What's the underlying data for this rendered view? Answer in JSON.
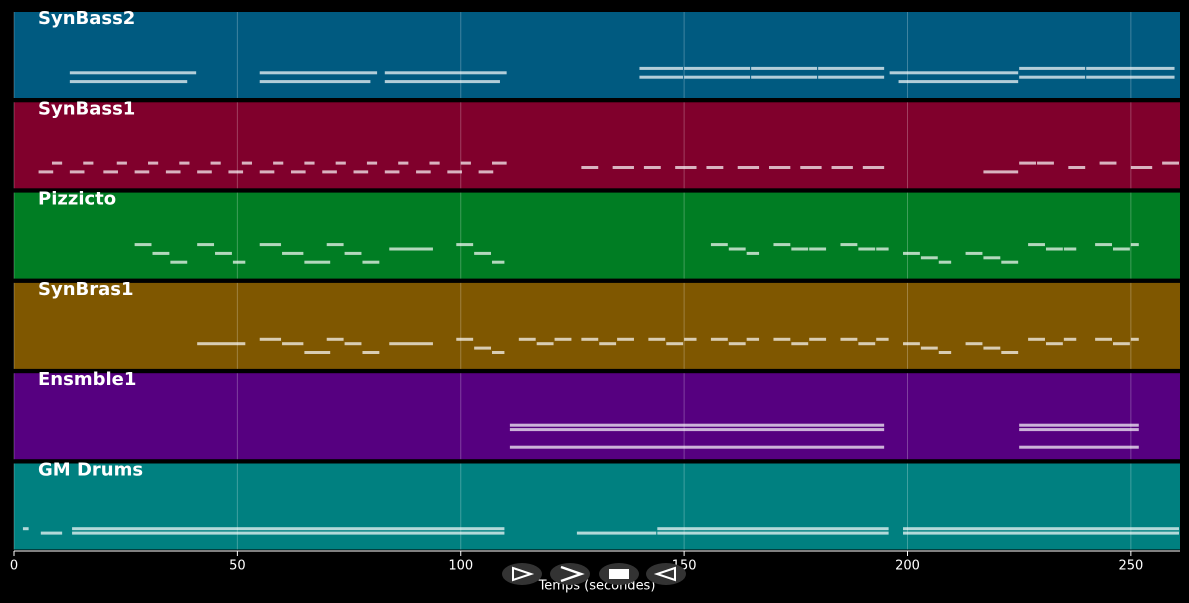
{
  "chart_data": {
    "type": "pianoroll",
    "x_label": "Temps (secondes)",
    "xlim": [
      0,
      261
    ],
    "xticks": [
      0,
      50,
      100,
      150,
      200,
      250
    ],
    "grid": true,
    "pitch_range": [
      0,
      5
    ],
    "tracks": [
      {
        "name": "SynBass2",
        "color": "#005a80",
        "notes": [
          [
            12.5,
            41,
            3
          ],
          [
            12.5,
            39,
            1
          ],
          [
            55,
            81.5,
            3
          ],
          [
            55,
            80,
            1
          ],
          [
            83,
            110.5,
            3
          ],
          [
            83,
            109,
            1
          ],
          [
            140,
            150,
            4
          ],
          [
            140,
            150,
            2
          ],
          [
            150,
            165,
            4
          ],
          [
            150,
            165,
            2
          ],
          [
            165,
            180,
            4
          ],
          [
            165,
            180,
            2
          ],
          [
            180,
            195,
            4
          ],
          [
            180,
            195,
            2
          ],
          [
            196,
            225,
            3
          ],
          [
            198,
            225,
            1
          ],
          [
            225,
            240,
            4
          ],
          [
            225,
            240,
            2
          ],
          [
            240,
            260,
            4
          ],
          [
            240,
            260,
            2
          ]
        ]
      },
      {
        "name": "SynBass1",
        "color": "#80002c",
        "notes": [
          [
            5.5,
            9,
            1
          ],
          [
            8.5,
            11,
            3
          ],
          [
            12.5,
            16,
            1
          ],
          [
            15.5,
            18,
            3
          ],
          [
            20,
            23.5,
            1
          ],
          [
            23,
            25.5,
            3
          ],
          [
            27,
            30.5,
            1
          ],
          [
            30,
            32.5,
            3
          ],
          [
            34,
            37.5,
            1
          ],
          [
            37,
            39.5,
            3
          ],
          [
            41,
            44.5,
            1
          ],
          [
            44,
            46.5,
            3
          ],
          [
            48,
            51.5,
            1
          ],
          [
            51,
            53.5,
            3
          ],
          [
            55,
            58.5,
            1
          ],
          [
            58,
            60.5,
            3
          ],
          [
            62,
            65.5,
            1
          ],
          [
            65,
            67.5,
            3
          ],
          [
            69,
            72.5,
            1
          ],
          [
            72,
            74.5,
            3
          ],
          [
            76,
            79.5,
            1
          ],
          [
            79,
            81.5,
            3
          ],
          [
            83,
            86.5,
            1
          ],
          [
            86,
            88.5,
            3
          ],
          [
            90,
            93.5,
            1
          ],
          [
            93,
            95.5,
            3
          ],
          [
            97,
            100.5,
            1
          ],
          [
            100,
            102.5,
            3
          ],
          [
            104,
            107.5,
            1
          ],
          [
            107,
            110.5,
            3
          ],
          [
            127,
            131,
            2
          ],
          [
            134,
            139,
            2
          ],
          [
            141,
            145,
            2
          ],
          [
            148,
            153,
            2
          ],
          [
            155,
            159,
            2
          ],
          [
            162,
            167,
            2
          ],
          [
            169,
            174,
            2
          ],
          [
            176,
            181,
            2
          ],
          [
            183,
            188,
            2
          ],
          [
            190,
            195,
            2
          ],
          [
            217,
            225,
            1
          ],
          [
            225,
            229,
            3
          ],
          [
            229,
            233,
            3
          ],
          [
            236,
            240,
            2
          ],
          [
            243,
            247,
            3
          ],
          [
            250,
            255,
            2
          ],
          [
            257,
            261,
            3
          ]
        ]
      },
      {
        "name": "Pizzicto",
        "color": "#007d23",
        "notes": [
          [
            27,
            31,
            5
          ],
          [
            31,
            35,
            3
          ],
          [
            35,
            39,
            1
          ],
          [
            41,
            45,
            5
          ],
          [
            45,
            49,
            3
          ],
          [
            49,
            52,
            1
          ],
          [
            55,
            60,
            5
          ],
          [
            60,
            65,
            3
          ],
          [
            65,
            71,
            1
          ],
          [
            70,
            74,
            5
          ],
          [
            74,
            78,
            3
          ],
          [
            78,
            82,
            1
          ],
          [
            84,
            94,
            4
          ],
          [
            99,
            103,
            5
          ],
          [
            103,
            107,
            3
          ],
          [
            107,
            110,
            1
          ],
          [
            156,
            160,
            5
          ],
          [
            160,
            164,
            4
          ],
          [
            164,
            167,
            3
          ],
          [
            170,
            174,
            5
          ],
          [
            174,
            178,
            4
          ],
          [
            178,
            182,
            4
          ],
          [
            185,
            189,
            5
          ],
          [
            189,
            193,
            4
          ],
          [
            193,
            196,
            4
          ],
          [
            199,
            203,
            3
          ],
          [
            203,
            207,
            2
          ],
          [
            207,
            210,
            1
          ],
          [
            213,
            217,
            3
          ],
          [
            217,
            221,
            2
          ],
          [
            221,
            225,
            1
          ],
          [
            227,
            231,
            5
          ],
          [
            231,
            235,
            4
          ],
          [
            235,
            238,
            4
          ],
          [
            242,
            246,
            5
          ],
          [
            246,
            250,
            4
          ],
          [
            250,
            252,
            5
          ]
        ]
      },
      {
        "name": "SynBras1",
        "color": "#7f5700",
        "notes": [
          [
            41,
            52,
            3
          ],
          [
            55,
            60,
            4
          ],
          [
            60,
            65,
            3
          ],
          [
            65,
            71,
            1
          ],
          [
            70,
            74,
            4
          ],
          [
            74,
            78,
            3
          ],
          [
            78,
            82,
            1
          ],
          [
            84,
            94,
            3
          ],
          [
            99,
            103,
            4
          ],
          [
            103,
            107,
            2
          ],
          [
            107,
            110,
            1
          ],
          [
            113,
            117,
            4
          ],
          [
            117,
            121,
            3
          ],
          [
            121,
            125,
            4
          ],
          [
            127,
            131,
            4
          ],
          [
            131,
            135,
            3
          ],
          [
            135,
            139,
            4
          ],
          [
            142,
            146,
            4
          ],
          [
            146,
            150,
            3
          ],
          [
            150,
            153,
            4
          ],
          [
            156,
            160,
            4
          ],
          [
            160,
            164,
            3
          ],
          [
            164,
            167,
            4
          ],
          [
            170,
            174,
            4
          ],
          [
            174,
            178,
            3
          ],
          [
            178,
            182,
            4
          ],
          [
            185,
            189,
            4
          ],
          [
            189,
            193,
            3
          ],
          [
            193,
            196,
            4
          ],
          [
            199,
            203,
            3
          ],
          [
            203,
            207,
            2
          ],
          [
            207,
            210,
            1
          ],
          [
            213,
            217,
            3
          ],
          [
            217,
            221,
            2
          ],
          [
            221,
            225,
            1
          ],
          [
            227,
            231,
            4
          ],
          [
            231,
            235,
            3
          ],
          [
            235,
            238,
            4
          ],
          [
            242,
            246,
            4
          ],
          [
            246,
            250,
            3
          ],
          [
            250,
            252,
            4
          ]
        ]
      },
      {
        "name": "Ensmble1",
        "color": "#560080",
        "notes": [
          [
            111,
            195,
            5
          ],
          [
            111,
            195,
            4
          ],
          [
            111,
            195,
            0
          ],
          [
            225,
            252,
            5
          ],
          [
            225,
            252,
            4
          ],
          [
            225,
            252,
            0
          ]
        ]
      },
      {
        "name": "GM Drums",
        "color": "#008080",
        "notes": [
          [
            2,
            3.5,
            2
          ],
          [
            6,
            11,
            1
          ],
          [
            13,
            110,
            2
          ],
          [
            13,
            110,
            1
          ],
          [
            126,
            144,
            1
          ],
          [
            144,
            196,
            2
          ],
          [
            144,
            196,
            1
          ],
          [
            199,
            261,
            2
          ],
          [
            199,
            261,
            1
          ]
        ]
      }
    ]
  }
}
